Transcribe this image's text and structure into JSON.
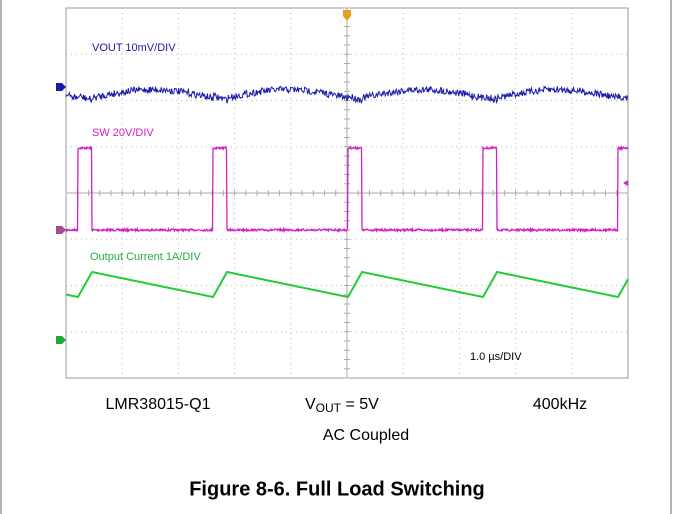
{
  "screen": {
    "channel_labels": [
      "VOUT  10mV/DIV",
      "SW  20V/DIV",
      "Output Current  1A/DIV"
    ],
    "timebase": "1.0 µs/DIV"
  },
  "caption_line": {
    "part": "LMR38015-Q1",
    "vout": {
      "symbol": "V",
      "subscript": "OUT",
      "rest": " = 5V"
    },
    "frequency": "400kHz"
  },
  "coupling": "AC Coupled",
  "figure_title": "Figure 8-6. Full Load Switching"
}
